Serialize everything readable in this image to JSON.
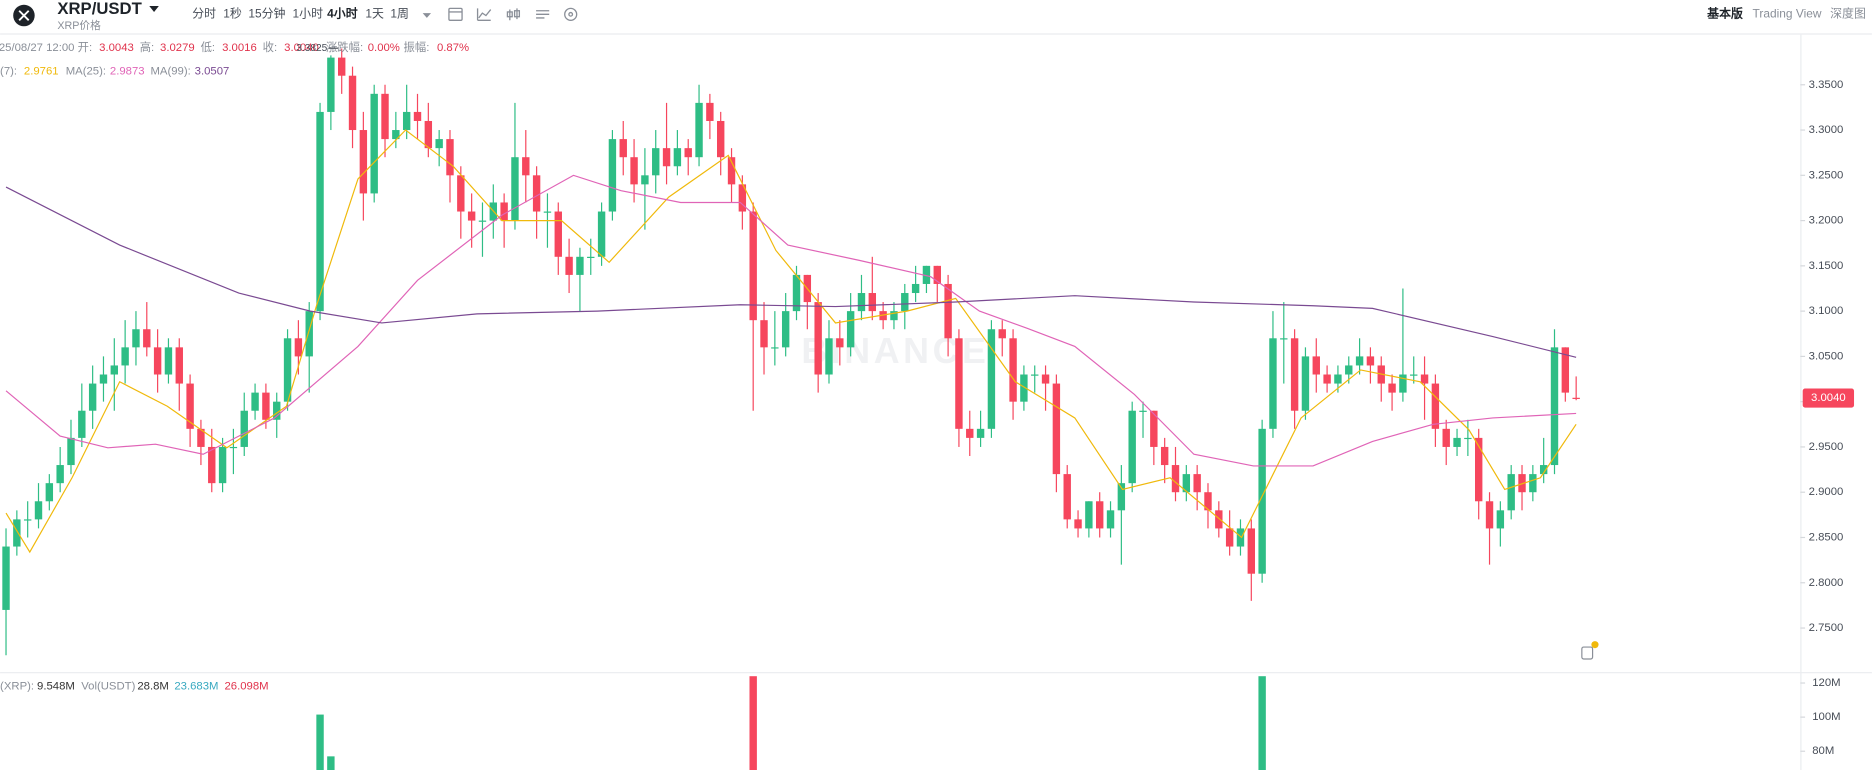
{
  "header": {
    "symbol": "XRP/USDT",
    "subtitle": "XRP价格",
    "tabs": [
      "分时",
      "1秒",
      "15分钟",
      "1小时",
      "4小时",
      "1天",
      "1周"
    ],
    "active_tab": 4,
    "views": [
      "基本版",
      "Trading View",
      "深度图"
    ],
    "active_view": 0
  },
  "info": [
    {
      "text": "25/08/27 12:00",
      "tone": "label"
    },
    {
      "text": "开:",
      "tone": "label"
    },
    {
      "text": "3.0043",
      "tone": "value"
    },
    {
      "text": "高:",
      "tone": "label"
    },
    {
      "text": "3.0279",
      "tone": "value"
    },
    {
      "text": "低:",
      "tone": "label"
    },
    {
      "text": "3.0016",
      "tone": "value"
    },
    {
      "text": "收:",
      "tone": "label"
    },
    {
      "text": "3.0040",
      "tone": "value"
    },
    {
      "text": "涨跌幅:",
      "tone": "label"
    },
    {
      "text": "0.00%",
      "tone": "value"
    },
    {
      "text": "振幅:",
      "tone": "label"
    },
    {
      "text": "0.87%",
      "tone": "value"
    }
  ],
  "chart_data": {
    "type": "candlestick",
    "up_color": "#2ebd85",
    "down_color": "#f6465d",
    "watermark": "BINANCE",
    "high_marker": "3.3825",
    "high_candle": 30,
    "xlim": [
      -0.55,
      165.7
    ],
    "ylim": [
      2.7,
      3.41
    ],
    "yticks": [
      {
        "value": 3.35,
        "label": "3.3500"
      },
      {
        "value": 3.3,
        "label": "3.3000"
      },
      {
        "value": 3.25,
        "label": "3.2500"
      },
      {
        "value": 3.2,
        "label": "3.2000"
      },
      {
        "value": 3.15,
        "label": "3.1500"
      },
      {
        "value": 3.1,
        "label": "3.1000"
      },
      {
        "value": 3.05,
        "label": "3.0500"
      },
      {
        "value": 3.0,
        "label": "3.0000"
      },
      {
        "value": 2.95,
        "label": "2.9500"
      },
      {
        "value": 2.9,
        "label": "2.9000"
      },
      {
        "value": 2.85,
        "label": "2.8500"
      },
      {
        "value": 2.8,
        "label": "2.8000"
      },
      {
        "value": 2.75,
        "label": "2.7500"
      }
    ],
    "current_price": {
      "value": 3.004,
      "label": "3.0040"
    },
    "ohlc": [
      [
        2.77,
        2.86,
        2.72,
        2.84
      ],
      [
        2.84,
        2.88,
        2.83,
        2.87
      ],
      [
        2.87,
        2.89,
        2.85,
        2.87
      ],
      [
        2.87,
        2.91,
        2.86,
        2.89
      ],
      [
        2.89,
        2.92,
        2.88,
        2.91
      ],
      [
        2.91,
        2.95,
        2.9,
        2.93
      ],
      [
        2.93,
        2.98,
        2.92,
        2.96
      ],
      [
        2.96,
        3.02,
        2.95,
        2.99
      ],
      [
        2.99,
        3.04,
        2.97,
        3.02
      ],
      [
        3.02,
        3.05,
        3.0,
        3.03
      ],
      [
        3.03,
        3.07,
        2.99,
        3.04
      ],
      [
        3.04,
        3.09,
        3.02,
        3.06
      ],
      [
        3.06,
        3.1,
        3.04,
        3.08
      ],
      [
        3.08,
        3.11,
        3.05,
        3.06
      ],
      [
        3.06,
        3.08,
        3.01,
        3.03
      ],
      [
        3.03,
        3.07,
        3.02,
        3.06
      ],
      [
        3.06,
        3.07,
        2.99,
        3.02
      ],
      [
        3.02,
        3.03,
        2.95,
        2.97
      ],
      [
        2.97,
        2.98,
        2.93,
        2.95
      ],
      [
        2.95,
        2.97,
        2.9,
        2.91
      ],
      [
        2.91,
        2.96,
        2.9,
        2.95
      ],
      [
        2.95,
        2.97,
        2.92,
        2.95
      ],
      [
        2.95,
        3.01,
        2.94,
        2.99
      ],
      [
        2.99,
        3.02,
        2.98,
        3.01
      ],
      [
        3.01,
        3.02,
        2.97,
        2.98
      ],
      [
        2.98,
        3.01,
        2.96,
        3.0
      ],
      [
        3.0,
        3.08,
        2.99,
        3.07
      ],
      [
        3.07,
        3.09,
        3.03,
        3.05
      ],
      [
        3.05,
        3.11,
        3.01,
        3.1
      ],
      [
        3.1,
        3.33,
        3.09,
        3.32
      ],
      [
        3.32,
        3.3825,
        3.3,
        3.38
      ],
      [
        3.38,
        3.39,
        3.34,
        3.36
      ],
      [
        3.36,
        3.37,
        3.28,
        3.3
      ],
      [
        3.3,
        3.32,
        3.2,
        3.23
      ],
      [
        3.23,
        3.35,
        3.22,
        3.34
      ],
      [
        3.34,
        3.35,
        3.27,
        3.29
      ],
      [
        3.29,
        3.32,
        3.28,
        3.3
      ],
      [
        3.3,
        3.35,
        3.29,
        3.32
      ],
      [
        3.32,
        3.34,
        3.29,
        3.31
      ],
      [
        3.31,
        3.33,
        3.27,
        3.28
      ],
      [
        3.28,
        3.3,
        3.26,
        3.29
      ],
      [
        3.29,
        3.3,
        3.22,
        3.25
      ],
      [
        3.25,
        3.26,
        3.18,
        3.21
      ],
      [
        3.21,
        3.23,
        3.17,
        3.2
      ],
      [
        3.2,
        3.22,
        3.16,
        3.2
      ],
      [
        3.2,
        3.24,
        3.18,
        3.22
      ],
      [
        3.22,
        3.23,
        3.17,
        3.2
      ],
      [
        3.2,
        3.33,
        3.19,
        3.27
      ],
      [
        3.27,
        3.3,
        3.22,
        3.25
      ],
      [
        3.25,
        3.26,
        3.18,
        3.21
      ],
      [
        3.21,
        3.23,
        3.17,
        3.21
      ],
      [
        3.21,
        3.22,
        3.14,
        3.16
      ],
      [
        3.16,
        3.18,
        3.12,
        3.14
      ],
      [
        3.14,
        3.17,
        3.1,
        3.16
      ],
      [
        3.16,
        3.18,
        3.14,
        3.16
      ],
      [
        3.16,
        3.22,
        3.15,
        3.21
      ],
      [
        3.21,
        3.3,
        3.2,
        3.29
      ],
      [
        3.29,
        3.31,
        3.25,
        3.27
      ],
      [
        3.27,
        3.29,
        3.22,
        3.24
      ],
      [
        3.24,
        3.28,
        3.19,
        3.25
      ],
      [
        3.25,
        3.3,
        3.23,
        3.28
      ],
      [
        3.28,
        3.33,
        3.24,
        3.26
      ],
      [
        3.26,
        3.3,
        3.25,
        3.28
      ],
      [
        3.28,
        3.29,
        3.25,
        3.27
      ],
      [
        3.27,
        3.35,
        3.26,
        3.33
      ],
      [
        3.33,
        3.34,
        3.29,
        3.31
      ],
      [
        3.31,
        3.32,
        3.25,
        3.27
      ],
      [
        3.27,
        3.28,
        3.22,
        3.24
      ],
      [
        3.24,
        3.25,
        3.19,
        3.21
      ],
      [
        3.21,
        3.22,
        2.99,
        3.09
      ],
      [
        3.09,
        3.11,
        3.03,
        3.06
      ],
      [
        3.06,
        3.1,
        3.04,
        3.06
      ],
      [
        3.06,
        3.12,
        3.05,
        3.1
      ],
      [
        3.1,
        3.15,
        3.09,
        3.14
      ],
      [
        3.14,
        3.14,
        3.08,
        3.11
      ],
      [
        3.11,
        3.12,
        3.01,
        3.03
      ],
      [
        3.03,
        3.09,
        3.02,
        3.07
      ],
      [
        3.07,
        3.09,
        3.04,
        3.06
      ],
      [
        3.06,
        3.12,
        3.05,
        3.1
      ],
      [
        3.1,
        3.14,
        3.09,
        3.12
      ],
      [
        3.12,
        3.16,
        3.09,
        3.1
      ],
      [
        3.1,
        3.11,
        3.08,
        3.09
      ],
      [
        3.09,
        3.11,
        3.08,
        3.1
      ],
      [
        3.1,
        3.13,
        3.08,
        3.12
      ],
      [
        3.12,
        3.15,
        3.11,
        3.13
      ],
      [
        3.13,
        3.15,
        3.12,
        3.15
      ],
      [
        3.15,
        3.15,
        3.11,
        3.13
      ],
      [
        3.13,
        3.14,
        3.05,
        3.07
      ],
      [
        3.07,
        3.08,
        2.95,
        2.97
      ],
      [
        2.97,
        2.99,
        2.94,
        2.96
      ],
      [
        2.96,
        2.99,
        2.95,
        2.97
      ],
      [
        2.97,
        3.09,
        2.96,
        3.08
      ],
      [
        3.08,
        3.09,
        3.05,
        3.07
      ],
      [
        3.07,
        3.08,
        2.98,
        3.0
      ],
      [
        3.0,
        3.04,
        2.99,
        3.03
      ],
      [
        3.03,
        3.04,
        3.01,
        3.03
      ],
      [
        3.03,
        3.04,
        2.99,
        3.02
      ],
      [
        3.02,
        3.03,
        2.9,
        2.92
      ],
      [
        2.92,
        2.93,
        2.86,
        2.87
      ],
      [
        2.87,
        2.88,
        2.85,
        2.86
      ],
      [
        2.86,
        2.89,
        2.85,
        2.89
      ],
      [
        2.89,
        2.9,
        2.85,
        2.86
      ],
      [
        2.86,
        2.89,
        2.85,
        2.88
      ],
      [
        2.88,
        2.93,
        2.82,
        2.91
      ],
      [
        2.91,
        3.0,
        2.9,
        2.99
      ],
      [
        2.99,
        3.0,
        2.96,
        2.99
      ],
      [
        2.99,
        2.99,
        2.93,
        2.95
      ],
      [
        2.95,
        2.96,
        2.91,
        2.93
      ],
      [
        2.93,
        2.95,
        2.89,
        2.9
      ],
      [
        2.9,
        2.93,
        2.89,
        2.92
      ],
      [
        2.92,
        2.93,
        2.88,
        2.9
      ],
      [
        2.9,
        2.91,
        2.86,
        2.88
      ],
      [
        2.88,
        2.89,
        2.85,
        2.86
      ],
      [
        2.86,
        2.88,
        2.83,
        2.84
      ],
      [
        2.84,
        2.87,
        2.83,
        2.86
      ],
      [
        2.86,
        2.87,
        2.78,
        2.81
      ],
      [
        2.81,
        2.98,
        2.8,
        2.97
      ],
      [
        2.97,
        3.1,
        2.96,
        3.07
      ],
      [
        3.07,
        3.11,
        3.02,
        3.07
      ],
      [
        3.07,
        3.08,
        2.97,
        2.99
      ],
      [
        2.99,
        3.06,
        2.98,
        3.05
      ],
      [
        3.05,
        3.07,
        3.01,
        3.03
      ],
      [
        3.03,
        3.04,
        3.01,
        3.02
      ],
      [
        3.02,
        3.04,
        3.01,
        3.03
      ],
      [
        3.03,
        3.05,
        3.02,
        3.04
      ],
      [
        3.04,
        3.07,
        3.03,
        3.05
      ],
      [
        3.05,
        3.06,
        3.02,
        3.04
      ],
      [
        3.04,
        3.05,
        3.0,
        3.02
      ],
      [
        3.02,
        3.03,
        2.99,
        3.01
      ],
      [
        3.01,
        3.125,
        3.0,
        3.03
      ],
      [
        3.03,
        3.05,
        3.02,
        3.03
      ],
      [
        3.03,
        3.05,
        2.98,
        3.02
      ],
      [
        3.02,
        3.03,
        2.95,
        2.97
      ],
      [
        2.97,
        2.98,
        2.93,
        2.95
      ],
      [
        2.95,
        2.97,
        2.94,
        2.96
      ],
      [
        2.96,
        2.98,
        2.94,
        2.96
      ],
      [
        2.96,
        2.97,
        2.87,
        2.89
      ],
      [
        2.89,
        2.9,
        2.82,
        2.86
      ],
      [
        2.86,
        2.89,
        2.84,
        2.88
      ],
      [
        2.88,
        2.93,
        2.87,
        2.92
      ],
      [
        2.92,
        2.93,
        2.88,
        2.9
      ],
      [
        2.9,
        2.93,
        2.89,
        2.92
      ],
      [
        2.92,
        2.96,
        2.91,
        2.93
      ],
      [
        2.93,
        3.08,
        2.92,
        3.06
      ],
      [
        3.06,
        3.06,
        3.0,
        3.01
      ],
      [
        3.0043,
        3.0279,
        3.0016,
        3.004
      ]
    ],
    "ma_lines": [
      {
        "label": "(7):",
        "value_label": "2.9761",
        "color": "#f0b90b",
        "x": [
          0,
          2.2,
          6.1,
          10.5,
          14.9,
          20.4,
          25.9,
          28.7,
          32.5,
          36.9,
          41.3,
          45.8,
          51.3,
          55.7,
          61.2,
          66.7,
          71.1,
          76.6,
          83.2,
          87.7,
          93.2,
          98.7,
          103.1,
          107.5,
          114.1,
          119.6,
          125.1,
          130.6,
          135.1,
          138.4,
          141.7,
          145
        ],
        "values": [
          2.877,
          2.834,
          2.916,
          3.022,
          2.995,
          2.949,
          2.995,
          3.107,
          3.246,
          3.3,
          3.26,
          3.2,
          3.2,
          3.154,
          3.226,
          3.272,
          3.167,
          3.087,
          3.1,
          3.114,
          3.022,
          2.982,
          2.903,
          2.916,
          2.85,
          2.982,
          3.035,
          3.022,
          2.969,
          2.903,
          2.916,
          2.975
        ]
      },
      {
        "label": "MA(25):",
        "value_label": "2.9873",
        "color": "#e064b7",
        "x": [
          0,
          5,
          9.4,
          13.8,
          18.2,
          24.8,
          32.5,
          38,
          45.8,
          52.4,
          56.8,
          62.3,
          67.8,
          72.2,
          78.8,
          85.4,
          89.9,
          94.3,
          98.7,
          104.2,
          109.7,
          115.2,
          120.7,
          126.2,
          131.8,
          137.3,
          145
        ],
        "values": [
          3.012,
          2.962,
          2.949,
          2.953,
          2.942,
          2.982,
          3.061,
          3.134,
          3.206,
          3.25,
          3.233,
          3.22,
          3.22,
          3.173,
          3.156,
          3.138,
          3.1,
          3.081,
          3.061,
          3.008,
          2.942,
          2.929,
          2.929,
          2.956,
          2.975,
          2.982,
          2.987
        ]
      },
      {
        "label": "MA(99):",
        "value_label": "3.0507",
        "color": "#7a4a92",
        "x": [
          0,
          10.5,
          21.5,
          28.1,
          34.7,
          43.5,
          54.6,
          67.8,
          76.6,
          87.7,
          98.7,
          109.7,
          120.7,
          126.2,
          137.3,
          145
        ],
        "values": [
          3.237,
          3.173,
          3.12,
          3.1,
          3.087,
          3.097,
          3.1,
          3.107,
          3.105,
          3.11,
          3.117,
          3.11,
          3.106,
          3.103,
          3.072,
          3.049
        ]
      }
    ],
    "volume": {
      "legend": [
        {
          "text": "(XRP):",
          "color": "#8a8f98"
        },
        {
          "text": "9.548M",
          "color": "#333333"
        },
        {
          "text": "Vol(USDT)",
          "color": "#8a8f98"
        },
        {
          "text": "28.8M",
          "color": "#333333"
        },
        {
          "text": "23.683M",
          "color": "#38a9c0"
        },
        {
          "text": "26.098M",
          "color": "#e0334c"
        }
      ],
      "ylim": [
        69000000,
        125000000
      ],
      "yticks": [
        {
          "value": 120000000,
          "label": "120M"
        },
        {
          "value": 100000000,
          "label": "100M"
        },
        {
          "value": 80000000,
          "label": "80M"
        }
      ],
      "bars": [
        {
          "candle": 29,
          "value": 101500000,
          "up": true
        },
        {
          "candle": 30,
          "value": 77000000,
          "up": true
        },
        {
          "candle": 69,
          "value": 124000000,
          "up": false
        },
        {
          "candle": 116,
          "value": 124000000,
          "up": true
        }
      ]
    }
  }
}
